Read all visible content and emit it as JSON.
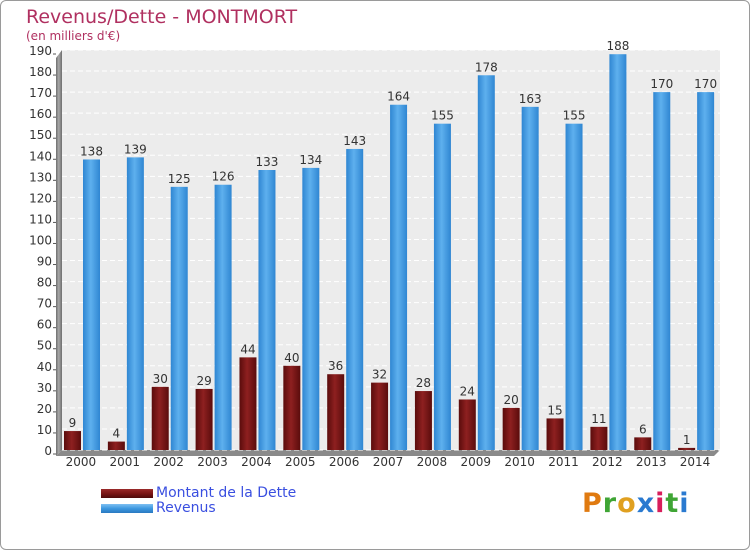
{
  "chart_data": {
    "type": "bar",
    "title": "Revenus/Dette - MONTMORT",
    "subtitle": "(en milliers d'€)",
    "categories": [
      "2000",
      "2001",
      "2002",
      "2003",
      "2004",
      "2005",
      "2006",
      "2007",
      "2008",
      "2009",
      "2010",
      "2011",
      "2012",
      "2013",
      "2014"
    ],
    "series": [
      {
        "name": "Montant de la Dette",
        "color": "#7a1515",
        "values": [
          9,
          4,
          30,
          29,
          44,
          40,
          36,
          32,
          28,
          24,
          20,
          15,
          11,
          6,
          1
        ]
      },
      {
        "name": "Revenus",
        "color": "#3d98e0",
        "values": [
          138,
          139,
          125,
          126,
          133,
          134,
          143,
          164,
          155,
          178,
          163,
          155,
          188,
          170,
          170
        ]
      }
    ],
    "ylim": [
      0,
      190
    ],
    "ytick_step": 10,
    "yticks": [
      0,
      10,
      20,
      30,
      40,
      50,
      60,
      70,
      80,
      90,
      100,
      110,
      120,
      130,
      140,
      150,
      160,
      170,
      180,
      190
    ],
    "grid": true,
    "legend_position": "bottom-left",
    "show_data_labels": true
  },
  "brand": {
    "text": "Proxiti",
    "colors": [
      "#e07a10",
      "#3fa535",
      "#e0a020",
      "#2a7ad0",
      "#d81e5b",
      "#3fa535",
      "#2a7ad0"
    ]
  }
}
